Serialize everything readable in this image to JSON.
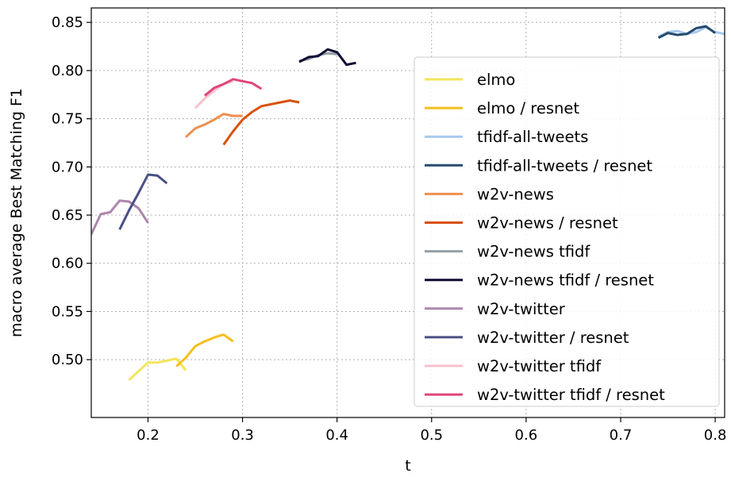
{
  "chart_data": {
    "type": "line",
    "title": "",
    "xlabel": "t",
    "ylabel": "macro average Best Matching F1",
    "xlim": [
      0.14,
      0.81
    ],
    "ylim": [
      0.44,
      0.865
    ],
    "xticks": [
      0.2,
      0.3,
      0.4,
      0.5,
      0.6,
      0.7,
      0.8
    ],
    "xtick_labels": [
      "0.2",
      "0.3",
      "0.4",
      "0.5",
      "0.6",
      "0.7",
      "0.8"
    ],
    "yticks": [
      0.5,
      0.55,
      0.6,
      0.65,
      0.7,
      0.75,
      0.8,
      0.85
    ],
    "ytick_labels": [
      "0.50",
      "0.55",
      "0.60",
      "0.65",
      "0.70",
      "0.75",
      "0.80",
      "0.85"
    ],
    "grid": true,
    "legend_position": "right",
    "series": [
      {
        "name": "elmo",
        "color": "#f3e45b",
        "x": [
          0.18,
          0.19,
          0.2,
          0.21,
          0.22,
          0.23,
          0.24
        ],
        "y": [
          0.479,
          0.488,
          0.497,
          0.497,
          0.499,
          0.501,
          0.489
        ]
      },
      {
        "name": "elmo / resnet",
        "color": "#f5bf1b",
        "x": [
          0.23,
          0.24,
          0.25,
          0.26,
          0.27,
          0.28,
          0.29
        ],
        "y": [
          0.493,
          0.502,
          0.514,
          0.519,
          0.523,
          0.526,
          0.519
        ]
      },
      {
        "name": "tfidf-all-tweets",
        "color": "#a6c9ef",
        "x": [
          0.74,
          0.75,
          0.76,
          0.77,
          0.78,
          0.79,
          0.8,
          0.81
        ],
        "y": [
          0.835,
          0.84,
          0.841,
          0.838,
          0.84,
          0.845,
          0.84,
          0.838
        ]
      },
      {
        "name": "tfidf-all-tweets / resnet",
        "color": "#274b6d",
        "x": [
          0.74,
          0.75,
          0.76,
          0.77,
          0.78,
          0.79,
          0.8
        ],
        "y": [
          0.834,
          0.839,
          0.837,
          0.838,
          0.844,
          0.846,
          0.839
        ]
      },
      {
        "name": "w2v-news",
        "color": "#ee8f4f",
        "x": [
          0.24,
          0.25,
          0.26,
          0.27,
          0.28,
          0.29,
          0.3
        ],
        "y": [
          0.731,
          0.74,
          0.744,
          0.749,
          0.755,
          0.753,
          0.753
        ]
      },
      {
        "name": "w2v-news / resnet",
        "color": "#d9520f",
        "x": [
          0.28,
          0.29,
          0.3,
          0.31,
          0.32,
          0.33,
          0.34,
          0.35,
          0.36
        ],
        "y": [
          0.723,
          0.737,
          0.749,
          0.757,
          0.763,
          0.765,
          0.767,
          0.769,
          0.767
        ]
      },
      {
        "name": "w2v-news tfidf",
        "color": "#959fa6",
        "x": [
          0.36,
          0.37,
          0.38,
          0.39,
          0.4
        ],
        "y": [
          0.81,
          0.812,
          0.816,
          0.818,
          0.817
        ]
      },
      {
        "name": "w2v-news tfidf / resnet",
        "color": "#0f0b33",
        "x": [
          0.36,
          0.37,
          0.38,
          0.39,
          0.4,
          0.41,
          0.42
        ],
        "y": [
          0.809,
          0.814,
          0.815,
          0.822,
          0.819,
          0.806,
          0.808
        ]
      },
      {
        "name": "w2v-twitter",
        "color": "#ad86ad",
        "x": [
          0.14,
          0.15,
          0.16,
          0.17,
          0.18,
          0.19,
          0.2
        ],
        "y": [
          0.63,
          0.651,
          0.653,
          0.665,
          0.664,
          0.657,
          0.642
        ]
      },
      {
        "name": "w2v-twitter / resnet",
        "color": "#4a4f85",
        "x": [
          0.17,
          0.18,
          0.19,
          0.2,
          0.21,
          0.22
        ],
        "y": [
          0.635,
          0.655,
          0.673,
          0.692,
          0.691,
          0.683
        ]
      },
      {
        "name": "w2v-twitter tfidf",
        "color": "#f8c1cc",
        "x": [
          0.25,
          0.26,
          0.27,
          0.28,
          0.29
        ],
        "y": [
          0.761,
          0.771,
          0.779,
          0.786,
          0.789
        ]
      },
      {
        "name": "w2v-twitter tfidf / resnet",
        "color": "#e0457a",
        "x": [
          0.26,
          0.27,
          0.28,
          0.29,
          0.3,
          0.31,
          0.32
        ],
        "y": [
          0.774,
          0.782,
          0.786,
          0.791,
          0.789,
          0.787,
          0.781
        ]
      }
    ]
  }
}
